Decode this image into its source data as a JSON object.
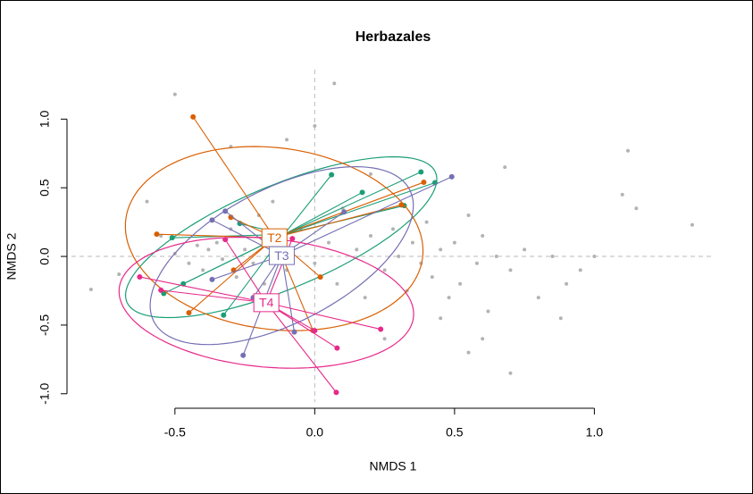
{
  "chart_data": {
    "type": "scatter",
    "title": "Herbazales",
    "x_label": "NMDS 1",
    "y_label": "NMDS 2",
    "xlim": [
      -0.87,
      1.43
    ],
    "ylim": [
      -1.06,
      1.36
    ],
    "xticks": [
      -0.5,
      {
        "value": 0,
        "label": "0.0"
      },
      0.5,
      {
        "value": 1,
        "label": "1.0"
      }
    ],
    "yticks": [
      {
        "value": -1,
        "label": "-1.0"
      },
      -0.5,
      {
        "value": 0,
        "label": "0.0"
      },
      0.5,
      {
        "value": 1,
        "label": "1.0"
      }
    ],
    "reference_lines": [
      0,
      0
    ],
    "points": {
      "color": "#b3b3b3",
      "x": [
        -0.8,
        -0.7,
        -0.55,
        -0.5,
        -0.45,
        -0.42,
        -0.4,
        -0.38,
        -0.35,
        -0.33,
        -0.3,
        -0.28,
        -0.25,
        -0.22,
        -0.2,
        -0.18,
        -0.15,
        -0.1,
        -0.05,
        0.0,
        0.05,
        0.08,
        0.1,
        0.15,
        0.18,
        0.2,
        0.25,
        0.28,
        0.3,
        0.33,
        0.35,
        0.38,
        0.4,
        0.42,
        0.45,
        0.48,
        0.5,
        0.52,
        0.55,
        0.58,
        0.6,
        0.62,
        0.65,
        0.7,
        0.75,
        0.8,
        0.85,
        0.9,
        0.95,
        1.0,
        1.1,
        1.12,
        1.15,
        1.35,
        0.07,
        -0.5,
        -0.3,
        0.6,
        0.7,
        0.55,
        0.45,
        0.25,
        0.0,
        -0.1,
        0.2,
        0.68,
        0.88,
        -0.6
      ],
      "y": [
        -0.24,
        -0.13,
        0.15,
        0.02,
        -0.05,
        0.08,
        -0.1,
        0.05,
        0.1,
        -0.02,
        0.2,
        -0.15,
        0.05,
        -0.05,
        0.3,
        -0.2,
        0.4,
        -0.1,
        0.2,
        -0.05,
        0.1,
        -0.2,
        0.35,
        0.05,
        -0.3,
        0.15,
        -0.1,
        0.2,
        0.0,
        -0.25,
        0.1,
        -0.05,
        0.25,
        -0.15,
        0.05,
        -0.3,
        0.1,
        -0.2,
        0.3,
        -0.05,
        0.15,
        -0.4,
        0.0,
        -0.1,
        0.05,
        -0.3,
        0.0,
        -0.2,
        -0.1,
        0.0,
        0.45,
        0.77,
        0.35,
        0.23,
        1.26,
        1.18,
        0.8,
        -0.6,
        -0.85,
        -0.7,
        -0.45,
        -0.6,
        0.95,
        0.85,
        0.6,
        0.65,
        -0.45,
        0.4
      ]
    },
    "series": [
      {
        "color": "#1b9e77",
        "centroid": [
          -0.11,
          0.16
        ],
        "x": [
          0.06,
          0.17,
          0.38,
          0.43,
          -0.51,
          -0.47,
          -0.54,
          -0.326,
          -0.268,
          0.32
        ],
        "y": [
          0.595,
          0.466,
          0.615,
          0.537,
          0.136,
          -0.2,
          -0.27,
          -0.427,
          0.24,
          0.37
        ],
        "ellipse": {
          "center": [
            -0.12,
            0.14
          ],
          "radii": [
            0.75,
            0.3
          ],
          "angle": 47
        }
      },
      {
        "name": "T2",
        "color": "#d95f02",
        "centroid": [
          -0.144,
          0.136
        ],
        "x": [
          -0.435,
          -0.565,
          -0.3,
          -0.29,
          -0.45,
          -0.006,
          0.02,
          0.31,
          0.39
        ],
        "y": [
          1.016,
          0.162,
          0.285,
          -0.1,
          -0.41,
          -0.54,
          -0.15,
          0.375,
          0.54
        ],
        "ellipse": {
          "center": [
            -0.145,
            0.13
          ],
          "radii": [
            0.52,
            0.68
          ],
          "angle": 15
        }
      },
      {
        "name": "T3",
        "color": "#7570b3",
        "centroid": [
          -0.118,
          0.006
        ],
        "x": [
          0.49,
          0.105,
          -0.367,
          -0.32,
          -0.367,
          -0.256,
          -0.073,
          -0.22
        ],
        "y": [
          0.58,
          0.324,
          0.265,
          0.33,
          -0.168,
          -0.72,
          -0.55,
          -0.3
        ],
        "ellipse": {
          "center": [
            -0.118,
            0.006
          ],
          "radii": [
            0.72,
            0.35
          ],
          "angle": 60
        }
      },
      {
        "name": "T4",
        "color": "#e7298a",
        "centroid": [
          -0.173,
          -0.337
        ],
        "x": [
          -0.626,
          -0.55,
          -0.32,
          -0.08,
          0.236,
          0.08,
          0.077,
          0.0
        ],
        "y": [
          -0.149,
          -0.246,
          0.123,
          0.13,
          -0.53,
          -0.667,
          -0.99,
          -0.54
        ],
        "ellipse": {
          "center": [
            -0.173,
            -0.337
          ],
          "radii": [
            0.55,
            0.45
          ],
          "angle": -30
        }
      }
    ]
  }
}
